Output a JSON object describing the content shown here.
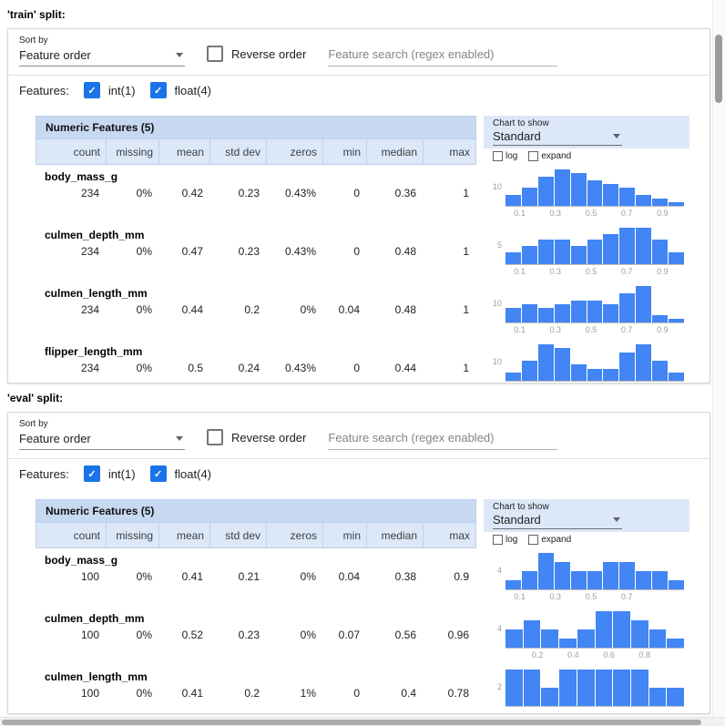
{
  "colors": {
    "bar_blue": "#4285f4",
    "title_blue": "#c7d9f1",
    "header_blue": "#dce8f8",
    "checkbox_blue": "#1a73e8"
  },
  "splits": [
    {
      "label": "'train' split:",
      "toolbar": {
        "sort_by_label": "Sort by",
        "sort_by_value": "Feature order",
        "reverse_order_label": "Reverse order",
        "search_placeholder": "Feature search (regex enabled)"
      },
      "features_label": "Features:",
      "filters": [
        {
          "label": "int(1)",
          "checked": true
        },
        {
          "label": "float(4)",
          "checked": true
        }
      ],
      "table": {
        "title": "Numeric Features (5)",
        "columns": [
          "count",
          "missing",
          "mean",
          "std dev",
          "zeros",
          "min",
          "median",
          "max"
        ],
        "chart_controls": {
          "label": "Chart to show",
          "value": "Standard",
          "log_label": "log",
          "expand_label": "expand"
        }
      },
      "rows": [
        {
          "feature": "body_mass_g",
          "values": [
            "234",
            "0%",
            "0.42",
            "0.23",
            "0.43%",
            "0",
            "0.36",
            "1"
          ],
          "chart": {
            "type": "histogram",
            "y_tick": "10",
            "x_ticks": [
              "0.1",
              "0.3",
              "0.5",
              "0.7",
              "0.9"
            ],
            "bars": [
              3,
              5,
              8,
              10,
              9,
              7,
              6,
              5,
              3,
              2,
              1
            ]
          }
        },
        {
          "feature": "culmen_depth_mm",
          "values": [
            "234",
            "0%",
            "0.47",
            "0.23",
            "0.43%",
            "0",
            "0.48",
            "1"
          ],
          "chart": {
            "type": "histogram",
            "y_tick": "5",
            "x_ticks": [
              "0.1",
              "0.3",
              "0.5",
              "0.7",
              "0.9"
            ],
            "bars": [
              2,
              3,
              4,
              4,
              3,
              4,
              5,
              6,
              6,
              4,
              2
            ]
          }
        },
        {
          "feature": "culmen_length_mm",
          "values": [
            "234",
            "0%",
            "0.44",
            "0.2",
            "0%",
            "0.04",
            "0.48",
            "1"
          ],
          "chart": {
            "type": "histogram",
            "y_tick": "10",
            "x_ticks": [
              "0.1",
              "0.3",
              "0.5",
              "0.7",
              "0.9"
            ],
            "bars": [
              4,
              5,
              4,
              5,
              6,
              6,
              5,
              8,
              10,
              2,
              1
            ]
          }
        },
        {
          "feature": "flipper_length_mm",
          "values": [
            "234",
            "0%",
            "0.5",
            "0.24",
            "0.43%",
            "0",
            "0.44",
            "1"
          ],
          "chart": {
            "type": "histogram",
            "y_tick": "10",
            "x_ticks": [
              "0.1",
              "0.3",
              "0.5",
              "0.7",
              "0.9"
            ],
            "bars": [
              2,
              5,
              9,
              8,
              4,
              3,
              3,
              7,
              9,
              5,
              2
            ]
          }
        }
      ]
    },
    {
      "label": "'eval' split:",
      "toolbar": {
        "sort_by_label": "Sort by",
        "sort_by_value": "Feature order",
        "reverse_order_label": "Reverse order",
        "search_placeholder": "Feature search (regex enabled)"
      },
      "features_label": "Features:",
      "filters": [
        {
          "label": "int(1)",
          "checked": true
        },
        {
          "label": "float(4)",
          "checked": true
        }
      ],
      "table": {
        "title": "Numeric Features (5)",
        "columns": [
          "count",
          "missing",
          "mean",
          "std dev",
          "zeros",
          "min",
          "median",
          "max"
        ],
        "chart_controls": {
          "label": "Chart to show",
          "value": "Standard",
          "log_label": "log",
          "expand_label": "expand"
        }
      },
      "rows": [
        {
          "feature": "body_mass_g",
          "values": [
            "100",
            "0%",
            "0.41",
            "0.21",
            "0%",
            "0.04",
            "0.38",
            "0.9"
          ],
          "chart": {
            "type": "histogram",
            "y_tick": "4",
            "x_ticks": [
              "0.1",
              "0.3",
              "0.5",
              "0.7"
            ],
            "bars": [
              1,
              2,
              4,
              3,
              2,
              2,
              3,
              3,
              2,
              2,
              1
            ]
          }
        },
        {
          "feature": "culmen_depth_mm",
          "values": [
            "100",
            "0%",
            "0.52",
            "0.23",
            "0%",
            "0.07",
            "0.56",
            "0.96"
          ],
          "chart": {
            "type": "histogram",
            "y_tick": "4",
            "x_ticks": [
              "0.2",
              "0.4",
              "0.6",
              "0.8"
            ],
            "bars": [
              2,
              3,
              2,
              1,
              2,
              4,
              4,
              3,
              2,
              1
            ]
          }
        },
        {
          "feature": "culmen_length_mm",
          "values": [
            "100",
            "0%",
            "0.41",
            "0.2",
            "1%",
            "0",
            "0.4",
            "0.78"
          ],
          "chart": {
            "type": "histogram",
            "y_tick": "2",
            "x_ticks": [],
            "bars": [
              2,
              2,
              1,
              2,
              2,
              2,
              2,
              2,
              1,
              1
            ]
          }
        }
      ]
    }
  ]
}
